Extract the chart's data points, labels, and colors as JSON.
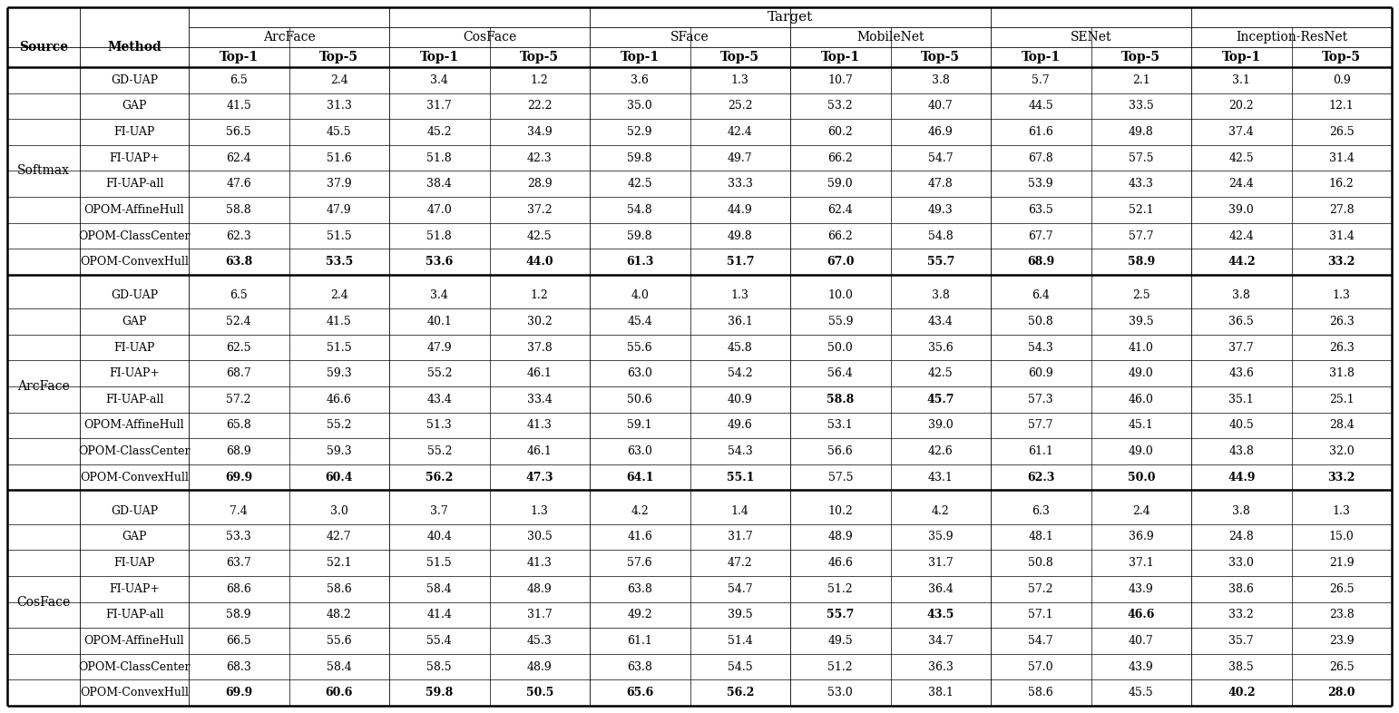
{
  "col_groups": [
    "ArcFace",
    "CosFace",
    "SFace",
    "MobileNet",
    "SENet",
    "Inception-ResNet"
  ],
  "methods": [
    "GD-UAP",
    "GAP",
    "FI-UAP",
    "FI-UAP+",
    "FI-UAP-all",
    "OPOM-AffineHull",
    "OPOM-ClassCenter",
    "OPOM-ConvexHull"
  ],
  "row_groups": [
    "Softmax",
    "ArcFace",
    "CosFace"
  ],
  "data": [
    [
      [
        6.5,
        2.4,
        3.4,
        1.2,
        3.6,
        1.3,
        10.7,
        3.8,
        5.7,
        2.1,
        3.1,
        0.9
      ],
      [
        41.5,
        31.3,
        31.7,
        22.2,
        35.0,
        25.2,
        53.2,
        40.7,
        44.5,
        33.5,
        20.2,
        12.1
      ],
      [
        56.5,
        45.5,
        45.2,
        34.9,
        52.9,
        42.4,
        60.2,
        46.9,
        61.6,
        49.8,
        37.4,
        26.5
      ],
      [
        62.4,
        51.6,
        51.8,
        42.3,
        59.8,
        49.7,
        66.2,
        54.7,
        67.8,
        57.5,
        42.5,
        31.4
      ],
      [
        47.6,
        37.9,
        38.4,
        28.9,
        42.5,
        33.3,
        59.0,
        47.8,
        53.9,
        43.3,
        24.4,
        16.2
      ],
      [
        58.8,
        47.9,
        47.0,
        37.2,
        54.8,
        44.9,
        62.4,
        49.3,
        63.5,
        52.1,
        39.0,
        27.8
      ],
      [
        62.3,
        51.5,
        51.8,
        42.5,
        59.8,
        49.8,
        66.2,
        54.8,
        67.7,
        57.7,
        42.4,
        31.4
      ],
      [
        63.8,
        53.5,
        53.6,
        44.0,
        61.3,
        51.7,
        67.0,
        55.7,
        68.9,
        58.9,
        44.2,
        33.2
      ]
    ],
    [
      [
        6.5,
        2.4,
        3.4,
        1.2,
        4.0,
        1.3,
        10.0,
        3.8,
        6.4,
        2.5,
        3.8,
        1.3
      ],
      [
        52.4,
        41.5,
        40.1,
        30.2,
        45.4,
        36.1,
        55.9,
        43.4,
        50.8,
        39.5,
        36.5,
        26.3
      ],
      [
        62.5,
        51.5,
        47.9,
        37.8,
        55.6,
        45.8,
        50.0,
        35.6,
        54.3,
        41.0,
        37.7,
        26.3
      ],
      [
        68.7,
        59.3,
        55.2,
        46.1,
        63.0,
        54.2,
        56.4,
        42.5,
        60.9,
        49.0,
        43.6,
        31.8
      ],
      [
        57.2,
        46.6,
        43.4,
        33.4,
        50.6,
        40.9,
        58.8,
        45.7,
        57.3,
        46.0,
        35.1,
        25.1
      ],
      [
        65.8,
        55.2,
        51.3,
        41.3,
        59.1,
        49.6,
        53.1,
        39.0,
        57.7,
        45.1,
        40.5,
        28.4
      ],
      [
        68.9,
        59.3,
        55.2,
        46.1,
        63.0,
        54.3,
        56.6,
        42.6,
        61.1,
        49.0,
        43.8,
        32.0
      ],
      [
        69.9,
        60.4,
        56.2,
        47.3,
        64.1,
        55.1,
        57.5,
        43.1,
        62.3,
        50.0,
        44.9,
        33.2
      ]
    ],
    [
      [
        7.4,
        3.0,
        3.7,
        1.3,
        4.2,
        1.4,
        10.2,
        4.2,
        6.3,
        2.4,
        3.8,
        1.3
      ],
      [
        53.3,
        42.7,
        40.4,
        30.5,
        41.6,
        31.7,
        48.9,
        35.9,
        48.1,
        36.9,
        24.8,
        15.0
      ],
      [
        63.7,
        52.1,
        51.5,
        41.3,
        57.6,
        47.2,
        46.6,
        31.7,
        50.8,
        37.1,
        33.0,
        21.9
      ],
      [
        68.6,
        58.6,
        58.4,
        48.9,
        63.8,
        54.7,
        51.2,
        36.4,
        57.2,
        43.9,
        38.6,
        26.5
      ],
      [
        58.9,
        48.2,
        41.4,
        31.7,
        49.2,
        39.5,
        55.7,
        43.5,
        57.1,
        46.6,
        33.2,
        23.8
      ],
      [
        66.5,
        55.6,
        55.4,
        45.3,
        61.1,
        51.4,
        49.5,
        34.7,
        54.7,
        40.7,
        35.7,
        23.9
      ],
      [
        68.3,
        58.4,
        58.5,
        48.9,
        63.8,
        54.5,
        51.2,
        36.3,
        57.0,
        43.9,
        38.5,
        26.5
      ],
      [
        69.9,
        60.6,
        59.8,
        50.5,
        65.6,
        56.2,
        53.0,
        38.1,
        58.6,
        45.5,
        40.2,
        28.0
      ]
    ]
  ],
  "bold": [
    [
      [],
      [],
      [],
      [],
      [],
      [],
      [],
      [
        0,
        1,
        2,
        3,
        4,
        5,
        6,
        7,
        8,
        9,
        10,
        11
      ]
    ],
    [
      [],
      [],
      [],
      [],
      [
        6,
        7
      ],
      [],
      [],
      [
        0,
        1,
        2,
        3,
        4,
        5,
        8,
        9,
        10,
        11
      ]
    ],
    [
      [],
      [],
      [],
      [],
      [
        6,
        7,
        9
      ],
      [],
      [],
      [
        0,
        1,
        2,
        3,
        4,
        5,
        10,
        11
      ]
    ]
  ],
  "lw_thick": 1.8,
  "lw_thin": 0.6,
  "lw_inner": 0.5,
  "font_size_data": 9.0,
  "font_size_header": 10.0,
  "font_size_title": 11.0
}
